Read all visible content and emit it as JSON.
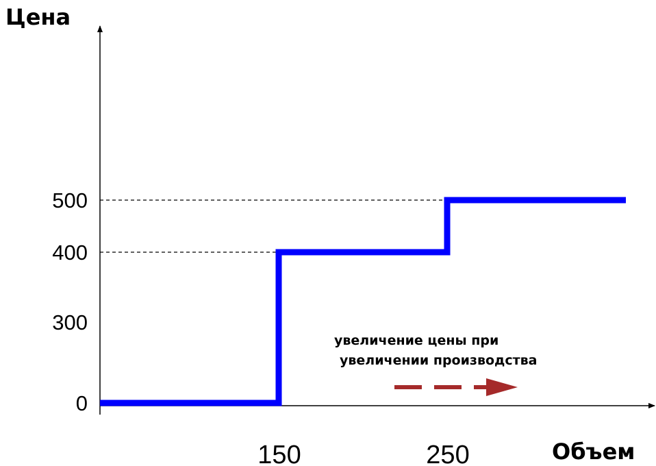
{
  "chart_data": {
    "type": "line",
    "step": true,
    "xlabel": "Объем",
    "ylabel": "Цена",
    "y_ticks": [
      0,
      300,
      400,
      500
    ],
    "x_ticks": [
      150,
      250
    ],
    "guide_levels": [
      400,
      500
    ],
    "series": [
      {
        "color": "#0000ff",
        "points": [
          {
            "x": 0,
            "y": 0
          },
          {
            "x": 150,
            "y": 0
          },
          {
            "x": 150,
            "y": 400
          },
          {
            "x": 250,
            "y": 400
          },
          {
            "x": 250,
            "y": 500
          },
          {
            "x": 400,
            "y": 500
          }
        ]
      }
    ],
    "annotation": {
      "line1": "увеличение цены при",
      "line2": "увеличении производства",
      "arrow_color": "#a52a2a"
    },
    "grid": false
  }
}
